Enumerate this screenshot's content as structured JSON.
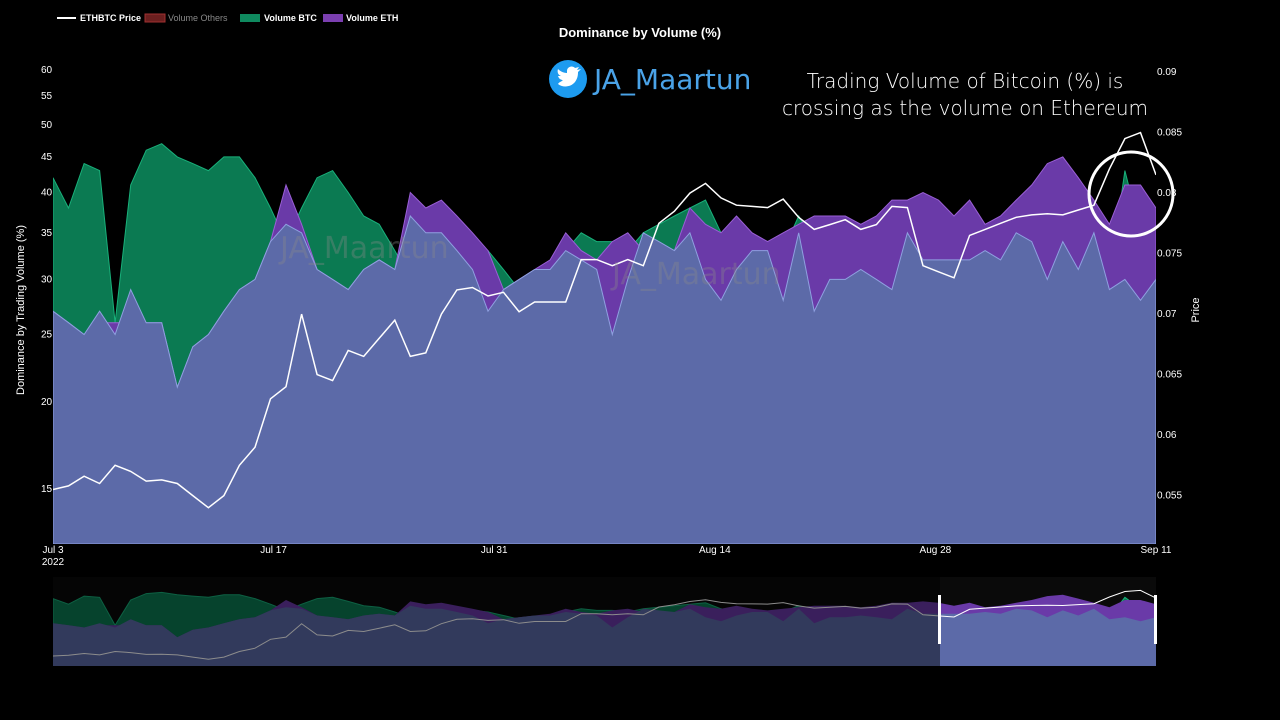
{
  "chart_data": {
    "type": "area",
    "title": "Dominance by Volume (%)",
    "ylabel": "Dominance by Trading Volume (%)",
    "y2label": "Price",
    "y_scale": "log",
    "ylim": [
      12.5,
      62
    ],
    "y2lim": [
      0.051,
      0.091
    ],
    "y_ticks": [
      "15",
      "20",
      "25",
      "30",
      "35",
      "40",
      "45",
      "50",
      "55",
      "60"
    ],
    "y2_ticks": [
      "0.055",
      "0.06",
      "0.065",
      "0.07",
      "0.075",
      "0.08",
      "0.085",
      "0.09"
    ],
    "x_ticks": [
      {
        "label": "Jul 3",
        "sub": "2022",
        "date": "2022-07-03"
      },
      {
        "label": "Jul 17",
        "sub": "",
        "date": "2022-07-17"
      },
      {
        "label": "Jul 31",
        "sub": "",
        "date": "2022-07-31"
      },
      {
        "label": "Aug 14",
        "sub": "",
        "date": "2022-08-14"
      },
      {
        "label": "Aug 28",
        "sub": "",
        "date": "2022-08-28"
      },
      {
        "label": "Sep 11",
        "sub": "",
        "date": "2022-09-11"
      }
    ],
    "x_start": "2022-07-03",
    "x_end": "2022-09-11",
    "legend_position": "top-left",
    "legend": [
      {
        "name": "ETHBTC Price",
        "color": "#ffffff"
      },
      {
        "name": "Volume Others",
        "color": "#6b1f1f"
      },
      {
        "name": "Volume BTC",
        "color": "#0f8a5f"
      },
      {
        "name": "Volume ETH",
        "color": "#7b3fb0"
      }
    ],
    "series": [
      {
        "name": "Volume BTC",
        "axis": "y",
        "color": "#0b7a52",
        "values": [
          42,
          38,
          44,
          43,
          26,
          41,
          46,
          47,
          45,
          44,
          43,
          45,
          45,
          42,
          38,
          34,
          38,
          42,
          43,
          40,
          37,
          36,
          33,
          30,
          29,
          28,
          31,
          34,
          33,
          31,
          29,
          30,
          31,
          33,
          35,
          34,
          34,
          33,
          35,
          36,
          37,
          38,
          39,
          35,
          33,
          30,
          31,
          33,
          37,
          34,
          36,
          36,
          35,
          33,
          32,
          31,
          30,
          29,
          30,
          32,
          33,
          34,
          36,
          37,
          32,
          31,
          36,
          35,
          30,
          43,
          35,
          35
        ]
      },
      {
        "name": "Volume ETH",
        "axis": "y",
        "color": "#6a3aa8",
        "values": [
          27,
          26,
          25,
          26,
          26,
          26,
          26,
          26,
          21,
          24,
          25,
          27,
          29,
          30,
          34,
          41,
          36,
          31,
          30,
          29,
          31,
          32,
          31,
          40,
          38,
          39,
          37,
          35,
          33,
          29,
          30,
          31,
          32,
          35,
          33,
          32,
          34,
          35,
          33,
          32,
          33,
          38,
          36,
          35,
          37,
          35,
          34,
          35,
          36,
          37,
          37,
          37,
          36,
          37,
          39,
          39,
          40,
          39,
          37,
          39,
          36,
          37,
          39,
          41,
          44,
          45,
          42,
          39,
          36,
          41,
          41,
          38
        ]
      },
      {
        "name": "Volume Others",
        "axis": "y",
        "color": "#5c6aa8",
        "values": [
          27,
          26,
          25,
          27,
          25,
          29,
          26,
          26,
          21,
          24,
          25,
          27,
          29,
          30,
          34,
          36,
          35,
          31,
          30,
          29,
          31,
          32,
          31,
          37,
          35,
          35,
          33,
          31,
          27,
          29,
          30,
          31,
          31,
          33,
          32,
          31,
          25,
          30,
          35,
          34,
          33,
          35,
          30,
          28,
          31,
          33,
          33,
          28,
          35,
          27,
          30,
          30,
          31,
          30,
          29,
          35,
          32,
          32,
          32,
          32,
          33,
          32,
          35,
          34,
          30,
          34,
          31,
          35,
          29,
          30,
          28,
          30
        ]
      },
      {
        "name": "ETHBTC Price",
        "axis": "y2",
        "color": "#ffffff",
        "values": [
          0.0555,
          0.0558,
          0.0566,
          0.056,
          0.0575,
          0.057,
          0.0562,
          0.0563,
          0.056,
          0.055,
          0.054,
          0.055,
          0.0575,
          0.059,
          0.063,
          0.064,
          0.07,
          0.065,
          0.0645,
          0.067,
          0.0665,
          0.068,
          0.0695,
          0.0665,
          0.0668,
          0.07,
          0.072,
          0.0722,
          0.0715,
          0.0718,
          0.0702,
          0.071,
          0.071,
          0.071,
          0.0745,
          0.0745,
          0.074,
          0.0745,
          0.074,
          0.0775,
          0.0785,
          0.08,
          0.0808,
          0.0796,
          0.079,
          0.0789,
          0.0788,
          0.0795,
          0.078,
          0.077,
          0.0774,
          0.0778,
          0.077,
          0.0774,
          0.0789,
          0.0788,
          0.074,
          0.0735,
          0.073,
          0.0765,
          0.077,
          0.0775,
          0.078,
          0.0782,
          0.0783,
          0.0782,
          0.0786,
          0.079,
          0.082,
          0.0845,
          0.085,
          0.0815
        ]
      }
    ]
  },
  "annotation": {
    "line1": "Trading Volume of Bitcoin (%) is",
    "line2": "crossing as the volume on Ethereum"
  },
  "watermark": {
    "handle": "JA_Maartun",
    "icon": "twitter-bird-icon",
    "icon_color": "#1d9bf0"
  }
}
